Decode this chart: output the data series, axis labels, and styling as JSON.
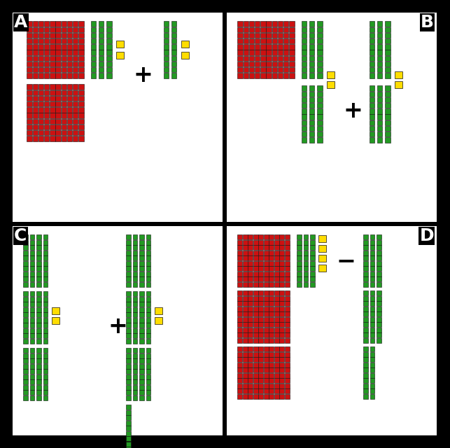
{
  "bg_outer": "#000000",
  "bg_inner": "#ffffff",
  "red": "#cc1111",
  "green": "#229922",
  "yellow": "#ffdd00",
  "label_color": "#ffffff",
  "panel_labels": [
    "A",
    "B",
    "C",
    "D"
  ],
  "label_fontsize": 18,
  "operator_fontsize": 24,
  "fig_w": 6.43,
  "fig_h": 6.4,
  "dpi": 100
}
